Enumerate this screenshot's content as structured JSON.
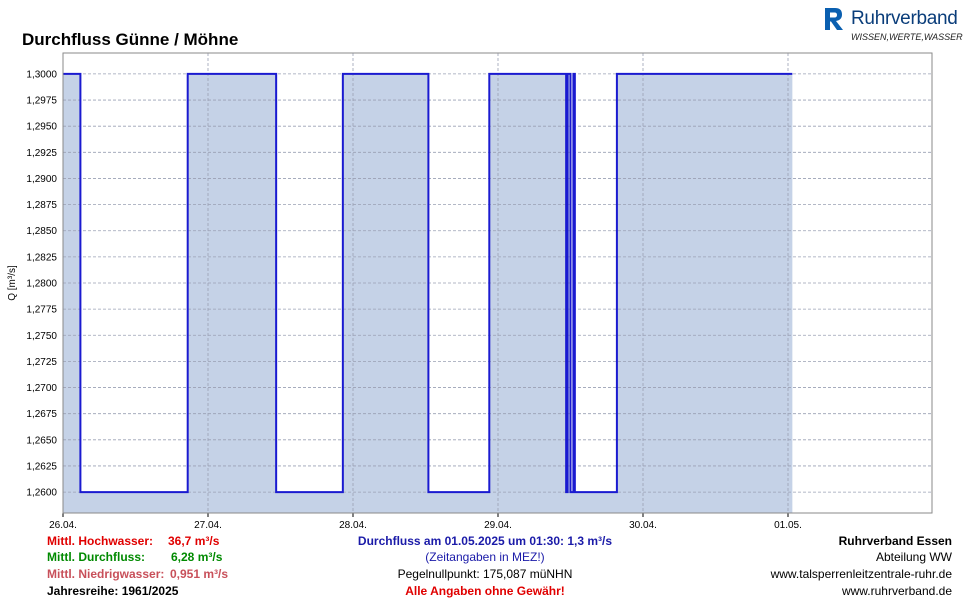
{
  "chart_data": {
    "type": "area",
    "title": "Durchfluss Günne / Möhne",
    "ylabel": "Q [m³/s]",
    "xlabel": "",
    "ylim": [
      1.258,
      1.302
    ],
    "y_ticks": [
      "1,3000",
      "1,2975",
      "1,2950",
      "1,2925",
      "1,2900",
      "1,2875",
      "1,2850",
      "1,2825",
      "1,2800",
      "1,2775",
      "1,2750",
      "1,2725",
      "1,2700",
      "1,2675",
      "1,2650",
      "1,2625",
      "1,2600"
    ],
    "x_ticks": [
      "26.04.",
      "27.04.",
      "28.04.",
      "29.04.",
      "30.04.",
      "01.05."
    ],
    "grid": true,
    "series": [
      {
        "x_day_points": [
          0,
          0.12,
          0.12,
          0.86,
          0.86,
          1.47,
          1.47,
          1.93,
          1.93,
          2.52,
          2.52,
          2.94,
          2.94,
          3.47,
          3.47,
          3.48,
          3.48,
          3.5,
          3.5,
          3.52,
          3.52,
          3.53,
          3.53,
          3.82,
          3.82,
          5.03
        ],
        "values": [
          1.3,
          1.3,
          1.26,
          1.26,
          1.3,
          1.3,
          1.26,
          1.26,
          1.3,
          1.3,
          1.26,
          1.26,
          1.3,
          1.3,
          1.26,
          1.26,
          1.3,
          1.3,
          1.26,
          1.26,
          1.3,
          1.3,
          1.26,
          1.26,
          1.3,
          1.3
        ]
      }
    ],
    "colors": {
      "line": "#1a1ad0",
      "fill": "#c5d2e7",
      "grid": "#9aa0b4",
      "plot_bg": "#ffffff"
    }
  },
  "brand": {
    "name": "Ruhrverband",
    "claim": "WISSEN,WERTE,WASSER"
  },
  "footer": {
    "hochwasser_label": "Mittl. Hochwasser:",
    "hochwasser_value": "36,7 m³/s",
    "durchfluss_label": "Mittl. Durchfluss:",
    "durchfluss_value": "6,28 m³/s",
    "niedrigwasser_label": "Mittl. Niedrigwasser:",
    "niedrigwasser_value": "0,951 m³/s",
    "jahresreihe": "Jahresreihe: 1961/2025",
    "current": "Durchfluss am 01.05.2025 um 01:30: 1,3 m³/s",
    "zeitangaben": "(Zeitangaben in MEZ!)",
    "pegel": "Pegelnullpunkt:   175,087 müNHN",
    "disclaimer": "Alle Angaben ohne Gewähr!",
    "org": "Ruhrverband Essen",
    "abteilung": "Abteilung WW",
    "url1": "www.talsperrenleitzentrale-ruhr.de",
    "url2": "www.ruhrverband.de"
  }
}
